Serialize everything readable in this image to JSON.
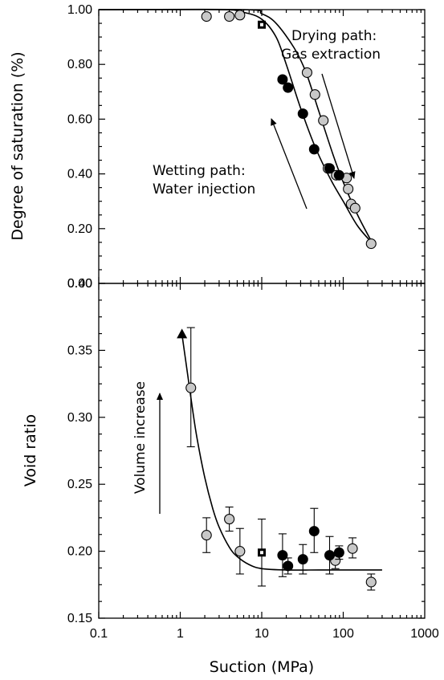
{
  "chart_data": [
    {
      "type": "scatter",
      "xlabel": "",
      "ylabel": "Degree of saturation (%)",
      "xscale": "log",
      "xlim": [
        0.1,
        1000
      ],
      "ylim": [
        0.0,
        1.0
      ],
      "yticks": [
        "0.00",
        "0.20",
        "0.40",
        "0.60",
        "0.80",
        "1.00"
      ],
      "series": [
        {
          "marker": "circle-gray",
          "points": [
            [
              2.1,
              0.975
            ],
            [
              4.0,
              0.975
            ],
            [
              5.4,
              0.98
            ],
            [
              36,
              0.77
            ],
            [
              45,
              0.69
            ],
            [
              57,
              0.595
            ],
            [
              65,
              0.42
            ],
            [
              82,
              0.395
            ],
            [
              110,
              0.385
            ],
            [
              115,
              0.345
            ],
            [
              125,
              0.29
            ],
            [
              140,
              0.275
            ],
            [
              220,
              0.145
            ]
          ]
        },
        {
          "marker": "circle-black",
          "points": [
            [
              18,
              0.745
            ],
            [
              21,
              0.715
            ],
            [
              32,
              0.62
            ],
            [
              44,
              0.49
            ],
            [
              68,
              0.42
            ],
            [
              89,
              0.395
            ]
          ]
        },
        {
          "marker": "square",
          "points": [
            [
              10,
              0.945
            ]
          ]
        }
      ],
      "fitted_curves": [
        {
          "points": [
            [
              0.1,
              1.0
            ],
            [
              3,
              1.0
            ],
            [
              6,
              0.99
            ],
            [
              10,
              0.965
            ],
            [
              15,
              0.9
            ],
            [
              20,
              0.8
            ],
            [
              30,
              0.64
            ],
            [
              45,
              0.5
            ],
            [
              70,
              0.38
            ],
            [
              100,
              0.3
            ],
            [
              150,
              0.21
            ],
            [
              230,
              0.145
            ]
          ]
        },
        {
          "points": [
            [
              0.1,
              1.0
            ],
            [
              6,
              1.0
            ],
            [
              10,
              0.985
            ],
            [
              15,
              0.95
            ],
            [
              25,
              0.86
            ],
            [
              35,
              0.77
            ],
            [
              50,
              0.63
            ],
            [
              75,
              0.47
            ],
            [
              100,
              0.37
            ],
            [
              150,
              0.25
            ],
            [
              230,
              0.145
            ]
          ]
        }
      ],
      "annotations": [
        {
          "text": [
            "Drying path:",
            "Gas extraction"
          ]
        },
        {
          "text": [
            "Wetting path:",
            "Water injection"
          ]
        }
      ]
    },
    {
      "type": "scatter",
      "xlabel": "Suction (MPa)",
      "ylabel": "Void ratio",
      "xscale": "log",
      "xlim": [
        0.1,
        1000
      ],
      "ylim": [
        0.15,
        0.4
      ],
      "xticks": [
        "0.1",
        "1",
        "10",
        "100",
        "1000"
      ],
      "yticks": [
        "0.15",
        "0.20",
        "0.25",
        "0.30",
        "0.35",
        "0.40"
      ],
      "series": [
        {
          "marker": "circle-gray",
          "points": [
            {
              "x": 1.35,
              "y": 0.322,
              "err": [
                0.278,
                0.367
              ]
            },
            {
              "x": 2.1,
              "y": 0.212,
              "err": [
                0.199,
                0.225
              ]
            },
            {
              "x": 4.0,
              "y": 0.224,
              "err": [
                0.215,
                0.233
              ]
            },
            {
              "x": 5.4,
              "y": 0.2,
              "err": [
                0.183,
                0.217
              ]
            },
            {
              "x": 80,
              "y": 0.193,
              "err": [
                0.187,
                0.199
              ]
            },
            {
              "x": 130,
              "y": 0.202,
              "err": [
                0.195,
                0.21
              ]
            },
            {
              "x": 220,
              "y": 0.177,
              "err": [
                0.171,
                0.183
              ]
            }
          ]
        },
        {
          "marker": "circle-black",
          "points": [
            {
              "x": 18,
              "y": 0.197,
              "err": [
                0.181,
                0.213
              ]
            },
            {
              "x": 21,
              "y": 0.189,
              "err": [
                0.183,
                0.195
              ]
            },
            {
              "x": 32,
              "y": 0.194,
              "err": [
                0.183,
                0.205
              ]
            },
            {
              "x": 44,
              "y": 0.215,
              "err": [
                0.199,
                0.232
              ]
            },
            {
              "x": 68,
              "y": 0.197,
              "err": [
                0.183,
                0.211
              ]
            },
            {
              "x": 89,
              "y": 0.199,
              "err": [
                0.194,
                0.204
              ]
            }
          ]
        },
        {
          "marker": "square",
          "points": [
            {
              "x": 10,
              "y": 0.199,
              "err": [
                0.174,
                0.224
              ]
            }
          ]
        },
        {
          "marker": "triangle-black",
          "points": [
            {
              "x": 1.05,
              "y": 0.362
            }
          ]
        }
      ],
      "fitted_curves": [
        {
          "points": [
            [
              1.05,
              0.362
            ],
            [
              1.2,
              0.337
            ],
            [
              1.4,
              0.308
            ],
            [
              1.6,
              0.285
            ],
            [
              2,
              0.255
            ],
            [
              2.5,
              0.232
            ],
            [
              3,
              0.218
            ],
            [
              4,
              0.203
            ],
            [
              5,
              0.196
            ],
            [
              7,
              0.19
            ],
            [
              10,
              0.187
            ],
            [
              20,
              0.186
            ],
            [
              50,
              0.186
            ],
            [
              100,
              0.186
            ],
            [
              300,
              0.186
            ]
          ]
        }
      ],
      "annotations": [
        {
          "text": [
            "Volume increase"
          ]
        }
      ]
    }
  ]
}
